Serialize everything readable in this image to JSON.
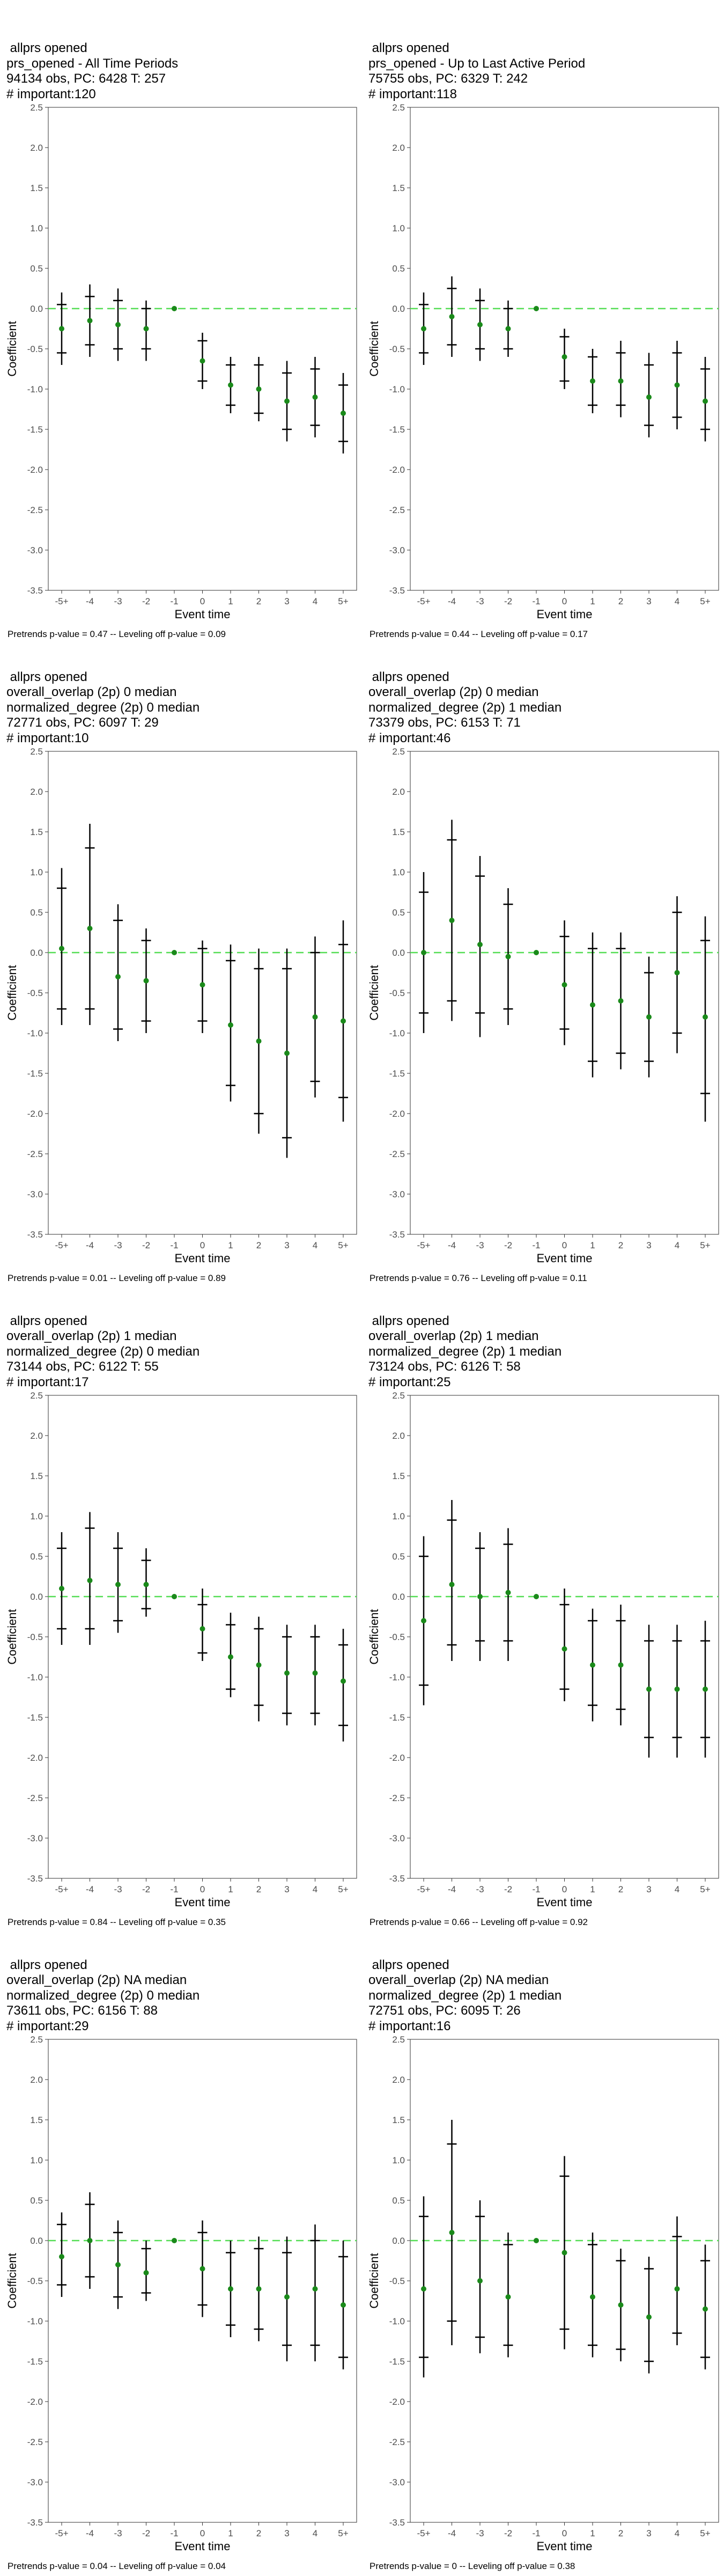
{
  "x_ticks": [
    "-5+",
    "-4",
    "-3",
    "-2",
    "-1",
    "0",
    "1",
    "2",
    "3",
    "4",
    "5+"
  ],
  "y_ticks": [
    2.5,
    2.0,
    1.5,
    1.0,
    0.5,
    0.0,
    -0.5,
    -1.0,
    -1.5,
    -2.0,
    -2.5,
    -3.0,
    -3.5
  ],
  "xlabel": "Event time",
  "ylabel": "Coefficient",
  "colors": {
    "point": "#1a8a1a",
    "zero_line": "#55dd55",
    "bar": "#000000",
    "axis": "#333333"
  },
  "chart_data": [
    {
      "type": "scatter",
      "title_lines": [
        "allprs opened",
        "prs_opened - All Time Periods",
        "94134 obs, PC: 6428 T: 257",
        "# important:120"
      ],
      "footer": "Pretrends p-value = 0.47 -- Leveling off p-value = 0.09",
      "ylim": [
        -3.5,
        2.5
      ],
      "points": [
        {
          "x": "-5+",
          "y": -0.25,
          "ci90": [
            -0.55,
            0.05
          ],
          "ci95": [
            -0.7,
            0.2
          ]
        },
        {
          "x": "-4",
          "y": -0.15,
          "ci90": [
            -0.45,
            0.15
          ],
          "ci95": [
            -0.6,
            0.3
          ]
        },
        {
          "x": "-3",
          "y": -0.2,
          "ci90": [
            -0.5,
            0.1
          ],
          "ci95": [
            -0.65,
            0.25
          ]
        },
        {
          "x": "-2",
          "y": -0.25,
          "ci90": [
            -0.5,
            0.0
          ],
          "ci95": [
            -0.65,
            0.1
          ]
        },
        {
          "x": "-1",
          "y": 0.0
        },
        {
          "x": "0",
          "y": -0.65,
          "ci90": [
            -0.9,
            -0.4
          ],
          "ci95": [
            -1.0,
            -0.3
          ]
        },
        {
          "x": "1",
          "y": -0.95,
          "ci90": [
            -1.2,
            -0.7
          ],
          "ci95": [
            -1.3,
            -0.6
          ]
        },
        {
          "x": "2",
          "y": -1.0,
          "ci90": [
            -1.3,
            -0.7
          ],
          "ci95": [
            -1.4,
            -0.6
          ]
        },
        {
          "x": "3",
          "y": -1.15,
          "ci90": [
            -1.5,
            -0.8
          ],
          "ci95": [
            -1.65,
            -0.65
          ]
        },
        {
          "x": "4",
          "y": -1.1,
          "ci90": [
            -1.45,
            -0.75
          ],
          "ci95": [
            -1.6,
            -0.6
          ]
        },
        {
          "x": "5+",
          "y": -1.3,
          "ci90": [
            -1.65,
            -0.95
          ],
          "ci95": [
            -1.8,
            -0.8
          ]
        }
      ]
    },
    {
      "type": "scatter",
      "title_lines": [
        "allprs opened",
        "prs_opened - Up to Last Active Period",
        "75755 obs, PC: 6329 T: 242",
        "# important:118"
      ],
      "footer": "Pretrends p-value = 0.44 -- Leveling off p-value = 0.17",
      "ylim": [
        -3.5,
        2.5
      ],
      "points": [
        {
          "x": "-5+",
          "y": -0.25,
          "ci90": [
            -0.55,
            0.05
          ],
          "ci95": [
            -0.7,
            0.2
          ]
        },
        {
          "x": "-4",
          "y": -0.1,
          "ci90": [
            -0.45,
            0.25
          ],
          "ci95": [
            -0.6,
            0.4
          ]
        },
        {
          "x": "-3",
          "y": -0.2,
          "ci90": [
            -0.5,
            0.1
          ],
          "ci95": [
            -0.65,
            0.25
          ]
        },
        {
          "x": "-2",
          "y": -0.25,
          "ci90": [
            -0.5,
            0.0
          ],
          "ci95": [
            -0.6,
            0.1
          ]
        },
        {
          "x": "-1",
          "y": 0.0
        },
        {
          "x": "0",
          "y": -0.6,
          "ci90": [
            -0.9,
            -0.35
          ],
          "ci95": [
            -1.0,
            -0.25
          ]
        },
        {
          "x": "1",
          "y": -0.9,
          "ci90": [
            -1.2,
            -0.6
          ],
          "ci95": [
            -1.3,
            -0.5
          ]
        },
        {
          "x": "2",
          "y": -0.9,
          "ci90": [
            -1.2,
            -0.55
          ],
          "ci95": [
            -1.35,
            -0.4
          ]
        },
        {
          "x": "3",
          "y": -1.1,
          "ci90": [
            -1.45,
            -0.7
          ],
          "ci95": [
            -1.6,
            -0.55
          ]
        },
        {
          "x": "4",
          "y": -0.95,
          "ci90": [
            -1.35,
            -0.55
          ],
          "ci95": [
            -1.5,
            -0.4
          ]
        },
        {
          "x": "5+",
          "y": -1.15,
          "ci90": [
            -1.5,
            -0.75
          ],
          "ci95": [
            -1.65,
            -0.6
          ]
        }
      ]
    },
    {
      "type": "scatter",
      "title_lines": [
        "allprs opened",
        "overall_overlap (2p) 0 median",
        "normalized_degree (2p) 0 median",
        "72771 obs, PC: 6097 T: 29",
        "# important:10"
      ],
      "footer": "Pretrends p-value = 0.01 -- Leveling off p-value = 0.89",
      "ylim": [
        -3.5,
        2.5
      ],
      "points": [
        {
          "x": "-5+",
          "y": 0.05,
          "ci90": [
            -0.7,
            0.8
          ],
          "ci95": [
            -0.9,
            1.05
          ]
        },
        {
          "x": "-4",
          "y": 0.3,
          "ci90": [
            -0.7,
            1.3
          ],
          "ci95": [
            -0.9,
            1.6
          ]
        },
        {
          "x": "-3",
          "y": -0.3,
          "ci90": [
            -0.95,
            0.4
          ],
          "ci95": [
            -1.1,
            0.6
          ]
        },
        {
          "x": "-2",
          "y": -0.35,
          "ci90": [
            -0.85,
            0.15
          ],
          "ci95": [
            -1.0,
            0.3
          ]
        },
        {
          "x": "-1",
          "y": 0.0
        },
        {
          "x": "0",
          "y": -0.4,
          "ci90": [
            -0.85,
            0.05
          ],
          "ci95": [
            -1.0,
            0.15
          ]
        },
        {
          "x": "1",
          "y": -0.9,
          "ci90": [
            -1.65,
            -0.1
          ],
          "ci95": [
            -1.85,
            0.1
          ]
        },
        {
          "x": "2",
          "y": -1.1,
          "ci90": [
            -2.0,
            -0.2
          ],
          "ci95": [
            -2.25,
            0.05
          ]
        },
        {
          "x": "3",
          "y": -1.25,
          "ci90": [
            -2.3,
            -0.2
          ],
          "ci95": [
            -2.55,
            0.05
          ]
        },
        {
          "x": "4",
          "y": -0.8,
          "ci90": [
            -1.6,
            0.0
          ],
          "ci95": [
            -1.8,
            0.2
          ]
        },
        {
          "x": "5+",
          "y": -0.85,
          "ci90": [
            -1.8,
            0.1
          ],
          "ci95": [
            -2.1,
            0.4
          ]
        }
      ]
    },
    {
      "type": "scatter",
      "title_lines": [
        "allprs opened",
        "overall_overlap (2p) 0 median",
        "normalized_degree (2p) 1 median",
        "73379 obs, PC: 6153 T: 71",
        "# important:46"
      ],
      "footer": "Pretrends p-value = 0.76 -- Leveling off p-value = 0.11",
      "ylim": [
        -3.5,
        2.5
      ],
      "points": [
        {
          "x": "-5+",
          "y": 0.0,
          "ci90": [
            -0.75,
            0.75
          ],
          "ci95": [
            -1.0,
            1.0
          ]
        },
        {
          "x": "-4",
          "y": 0.4,
          "ci90": [
            -0.6,
            1.4
          ],
          "ci95": [
            -0.85,
            1.65
          ]
        },
        {
          "x": "-3",
          "y": 0.1,
          "ci90": [
            -0.75,
            0.95
          ],
          "ci95": [
            -1.05,
            1.2
          ]
        },
        {
          "x": "-2",
          "y": -0.05,
          "ci90": [
            -0.7,
            0.6
          ],
          "ci95": [
            -0.9,
            0.8
          ]
        },
        {
          "x": "-1",
          "y": 0.0
        },
        {
          "x": "0",
          "y": -0.4,
          "ci90": [
            -0.95,
            0.2
          ],
          "ci95": [
            -1.15,
            0.4
          ]
        },
        {
          "x": "1",
          "y": -0.65,
          "ci90": [
            -1.35,
            0.05
          ],
          "ci95": [
            -1.55,
            0.25
          ]
        },
        {
          "x": "2",
          "y": -0.6,
          "ci90": [
            -1.25,
            0.05
          ],
          "ci95": [
            -1.45,
            0.25
          ]
        },
        {
          "x": "3",
          "y": -0.8,
          "ci90": [
            -1.35,
            -0.25
          ],
          "ci95": [
            -1.55,
            -0.05
          ]
        },
        {
          "x": "4",
          "y": -0.25,
          "ci90": [
            -1.0,
            0.5
          ],
          "ci95": [
            -1.25,
            0.7
          ]
        },
        {
          "x": "5+",
          "y": -0.8,
          "ci90": [
            -1.75,
            0.15
          ],
          "ci95": [
            -2.1,
            0.45
          ]
        }
      ]
    },
    {
      "type": "scatter",
      "title_lines": [
        "allprs opened",
        "overall_overlap (2p) 1 median",
        "normalized_degree (2p) 0 median",
        "73144 obs, PC: 6122 T: 55",
        "# important:17"
      ],
      "footer": "Pretrends p-value = 0.84 -- Leveling off p-value = 0.35",
      "ylim": [
        -3.5,
        2.5
      ],
      "points": [
        {
          "x": "-5+",
          "y": 0.1,
          "ci90": [
            -0.4,
            0.6
          ],
          "ci95": [
            -0.6,
            0.8
          ]
        },
        {
          "x": "-4",
          "y": 0.2,
          "ci90": [
            -0.4,
            0.85
          ],
          "ci95": [
            -0.6,
            1.05
          ]
        },
        {
          "x": "-3",
          "y": 0.15,
          "ci90": [
            -0.3,
            0.6
          ],
          "ci95": [
            -0.45,
            0.8
          ]
        },
        {
          "x": "-2",
          "y": 0.15,
          "ci90": [
            -0.15,
            0.45
          ],
          "ci95": [
            -0.25,
            0.6
          ]
        },
        {
          "x": "-1",
          "y": 0.0
        },
        {
          "x": "0",
          "y": -0.4,
          "ci90": [
            -0.7,
            -0.1
          ],
          "ci95": [
            -0.8,
            0.1
          ]
        },
        {
          "x": "1",
          "y": -0.75,
          "ci90": [
            -1.15,
            -0.35
          ],
          "ci95": [
            -1.25,
            -0.2
          ]
        },
        {
          "x": "2",
          "y": -0.85,
          "ci90": [
            -1.35,
            -0.4
          ],
          "ci95": [
            -1.55,
            -0.25
          ]
        },
        {
          "x": "3",
          "y": -0.95,
          "ci90": [
            -1.45,
            -0.5
          ],
          "ci95": [
            -1.6,
            -0.35
          ]
        },
        {
          "x": "4",
          "y": -0.95,
          "ci90": [
            -1.45,
            -0.5
          ],
          "ci95": [
            -1.6,
            -0.35
          ]
        },
        {
          "x": "5+",
          "y": -1.05,
          "ci90": [
            -1.6,
            -0.6
          ],
          "ci95": [
            -1.8,
            -0.4
          ]
        }
      ]
    },
    {
      "type": "scatter",
      "title_lines": [
        "allprs opened",
        "overall_overlap (2p) 1 median",
        "normalized_degree (2p) 1 median",
        "73124 obs, PC: 6126 T: 58",
        "# important:25"
      ],
      "footer": "Pretrends p-value = 0.66 -- Leveling off p-value = 0.92",
      "ylim": [
        -3.5,
        2.5
      ],
      "points": [
        {
          "x": "-5+",
          "y": -0.3,
          "ci90": [
            -1.1,
            0.5
          ],
          "ci95": [
            -1.35,
            0.75
          ]
        },
        {
          "x": "-4",
          "y": 0.15,
          "ci90": [
            -0.6,
            0.95
          ],
          "ci95": [
            -0.8,
            1.2
          ]
        },
        {
          "x": "-3",
          "y": 0.0,
          "ci90": [
            -0.55,
            0.6
          ],
          "ci95": [
            -0.8,
            0.8
          ]
        },
        {
          "x": "-2",
          "y": 0.05,
          "ci90": [
            -0.55,
            0.65
          ],
          "ci95": [
            -0.8,
            0.85
          ]
        },
        {
          "x": "-1",
          "y": 0.0
        },
        {
          "x": "0",
          "y": -0.65,
          "ci90": [
            -1.15,
            -0.1
          ],
          "ci95": [
            -1.3,
            0.1
          ]
        },
        {
          "x": "1",
          "y": -0.85,
          "ci90": [
            -1.35,
            -0.3
          ],
          "ci95": [
            -1.55,
            -0.15
          ]
        },
        {
          "x": "2",
          "y": -0.85,
          "ci90": [
            -1.4,
            -0.3
          ],
          "ci95": [
            -1.6,
            -0.1
          ]
        },
        {
          "x": "3",
          "y": -1.15,
          "ci90": [
            -1.75,
            -0.55
          ],
          "ci95": [
            -2.0,
            -0.35
          ]
        },
        {
          "x": "4",
          "y": -1.15,
          "ci90": [
            -1.75,
            -0.55
          ],
          "ci95": [
            -2.0,
            -0.35
          ]
        },
        {
          "x": "5+",
          "y": -1.15,
          "ci90": [
            -1.75,
            -0.55
          ],
          "ci95": [
            -2.0,
            -0.3
          ]
        }
      ]
    },
    {
      "type": "scatter",
      "title_lines": [
        "allprs opened",
        "overall_overlap (2p) NA median",
        "normalized_degree (2p) 0 median",
        "73611 obs, PC: 6156 T: 88",
        "# important:29"
      ],
      "footer": "Pretrends p-value = 0.04 -- Leveling off p-value = 0.04",
      "ylim": [
        -3.5,
        2.5
      ],
      "points": [
        {
          "x": "-5+",
          "y": -0.2,
          "ci90": [
            -0.55,
            0.2
          ],
          "ci95": [
            -0.7,
            0.35
          ]
        },
        {
          "x": "-4",
          "y": 0.0,
          "ci90": [
            -0.45,
            0.45
          ],
          "ci95": [
            -0.6,
            0.6
          ]
        },
        {
          "x": "-3",
          "y": -0.3,
          "ci90": [
            -0.7,
            0.1
          ],
          "ci95": [
            -0.85,
            0.25
          ]
        },
        {
          "x": "-2",
          "y": -0.4,
          "ci90": [
            -0.65,
            -0.1
          ],
          "ci95": [
            -0.75,
            0.0
          ]
        },
        {
          "x": "-1",
          "y": 0.0
        },
        {
          "x": "0",
          "y": -0.35,
          "ci90": [
            -0.8,
            0.1
          ],
          "ci95": [
            -0.95,
            0.25
          ]
        },
        {
          "x": "1",
          "y": -0.6,
          "ci90": [
            -1.05,
            -0.15
          ],
          "ci95": [
            -1.2,
            0.0
          ]
        },
        {
          "x": "2",
          "y": -0.6,
          "ci90": [
            -1.1,
            -0.1
          ],
          "ci95": [
            -1.25,
            0.05
          ]
        },
        {
          "x": "3",
          "y": -0.7,
          "ci90": [
            -1.3,
            -0.15
          ],
          "ci95": [
            -1.5,
            0.05
          ]
        },
        {
          "x": "4",
          "y": -0.6,
          "ci90": [
            -1.3,
            0.0
          ],
          "ci95": [
            -1.5,
            0.2
          ]
        },
        {
          "x": "5+",
          "y": -0.8,
          "ci90": [
            -1.45,
            -0.2
          ],
          "ci95": [
            -1.6,
            0.0
          ]
        }
      ]
    },
    {
      "type": "scatter",
      "title_lines": [
        "allprs opened",
        "overall_overlap (2p) NA median",
        "normalized_degree (2p) 1 median",
        "72751 obs, PC: 6095 T: 26",
        "# important:16"
      ],
      "footer": "Pretrends p-value = 0 -- Leveling off p-value = 0.38",
      "ylim": [
        -3.5,
        2.5
      ],
      "points": [
        {
          "x": "-5+",
          "y": -0.6,
          "ci90": [
            -1.45,
            0.3
          ],
          "ci95": [
            -1.7,
            0.55
          ]
        },
        {
          "x": "-4",
          "y": 0.1,
          "ci90": [
            -1.0,
            1.2
          ],
          "ci95": [
            -1.3,
            1.5
          ]
        },
        {
          "x": "-3",
          "y": -0.5,
          "ci90": [
            -1.2,
            0.3
          ],
          "ci95": [
            -1.4,
            0.5
          ]
        },
        {
          "x": "-2",
          "y": -0.7,
          "ci90": [
            -1.3,
            -0.05
          ],
          "ci95": [
            -1.45,
            0.1
          ]
        },
        {
          "x": "-1",
          "y": 0.0
        },
        {
          "x": "0",
          "y": -0.15,
          "ci90": [
            -1.1,
            0.8
          ],
          "ci95": [
            -1.35,
            1.05
          ]
        },
        {
          "x": "1",
          "y": -0.7,
          "ci90": [
            -1.3,
            -0.05
          ],
          "ci95": [
            -1.45,
            0.1
          ]
        },
        {
          "x": "2",
          "y": -0.8,
          "ci90": [
            -1.35,
            -0.25
          ],
          "ci95": [
            -1.5,
            -0.1
          ]
        },
        {
          "x": "3",
          "y": -0.95,
          "ci90": [
            -1.5,
            -0.35
          ],
          "ci95": [
            -1.65,
            -0.2
          ]
        },
        {
          "x": "4",
          "y": -0.6,
          "ci90": [
            -1.15,
            0.05
          ],
          "ci95": [
            -1.3,
            0.3
          ]
        },
        {
          "x": "5+",
          "y": -0.85,
          "ci90": [
            -1.45,
            -0.25
          ],
          "ci95": [
            -1.6,
            -0.05
          ]
        }
      ]
    }
  ]
}
